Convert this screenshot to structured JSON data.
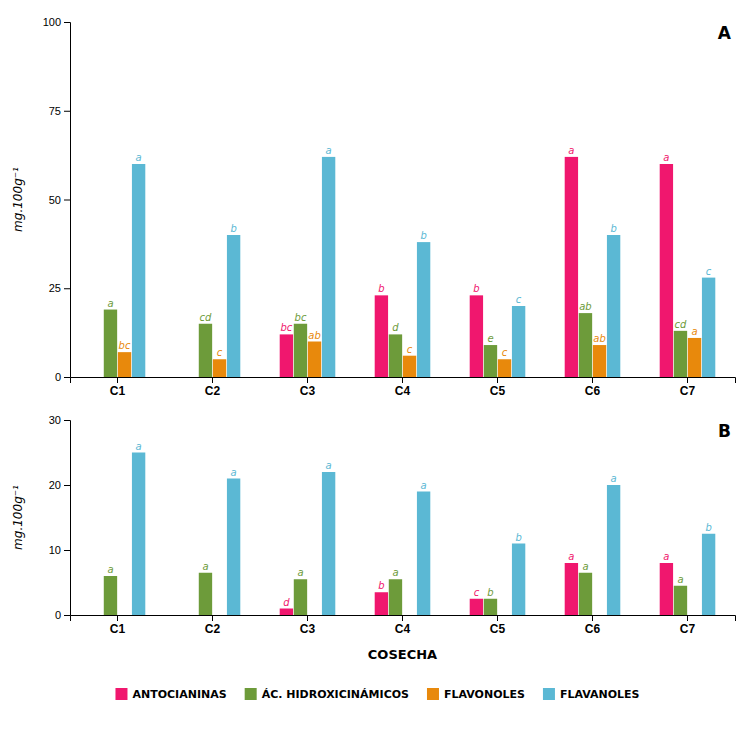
{
  "chart_data": [
    {
      "type": "bar",
      "title": "A",
      "categories": [
        "C1",
        "C2",
        "C3",
        "C4",
        "C5",
        "C6",
        "C7"
      ],
      "series": [
        {
          "name": "ANTOCIANINAS",
          "color": "#F0176E",
          "values": [
            0,
            0,
            12,
            23,
            23,
            62,
            60
          ],
          "annotations": [
            null,
            null,
            "bc",
            "b",
            "b",
            "a",
            "a"
          ]
        },
        {
          "name": "ÁC. HIDROXICINÁMICOS",
          "color": "#6d9b3a",
          "values": [
            19,
            15,
            15,
            12,
            9,
            18,
            13
          ],
          "annotations": [
            "a",
            "cd",
            "bc",
            "d",
            "e",
            "ab",
            "cd"
          ]
        },
        {
          "name": "FLAVONOLES",
          "color": "#E8890C",
          "values": [
            7,
            5,
            10,
            6,
            5,
            9,
            11
          ],
          "annotations": [
            "bc",
            "c",
            "ab",
            "c",
            "c",
            "ab",
            "a"
          ]
        },
        {
          "name": "FLAVANOLES",
          "color": "#5bb8d4",
          "values": [
            60,
            40,
            62,
            38,
            20,
            40,
            28
          ],
          "annotations": [
            "a",
            "b",
            "a",
            "b",
            "c",
            "b",
            "c"
          ]
        }
      ],
      "ylabel": "mg.100g⁻¹",
      "ylim": [
        0,
        100
      ],
      "yticks": [
        0,
        25,
        50,
        75,
        100
      ],
      "grid": false
    },
    {
      "type": "bar",
      "title": "B",
      "categories": [
        "C1",
        "C2",
        "C3",
        "C4",
        "C5",
        "C6",
        "C7"
      ],
      "series": [
        {
          "name": "ANTOCIANINAS",
          "color": "#F0176E",
          "values": [
            0,
            0,
            1,
            3.5,
            2.5,
            8,
            8
          ],
          "annotations": [
            null,
            null,
            "d",
            "b",
            "c",
            "a",
            "a"
          ]
        },
        {
          "name": "ÁC. HIDROXICINÁMICOS",
          "color": "#6d9b3a",
          "values": [
            6,
            6.5,
            5.5,
            5.5,
            2.5,
            6.5,
            4.5
          ],
          "annotations": [
            "a",
            "a",
            "a",
            "a",
            "b",
            "a",
            "a"
          ]
        },
        {
          "name": "FLAVONOLES",
          "color": "#E8890C",
          "values": [
            0,
            0,
            0,
            0,
            0,
            0,
            0
          ],
          "annotations": [
            null,
            null,
            null,
            null,
            null,
            null,
            null
          ]
        },
        {
          "name": "FLAVANOLES",
          "color": "#5bb8d4",
          "values": [
            25,
            21,
            22,
            19,
            11,
            20,
            12.5
          ],
          "annotations": [
            "a",
            "a",
            "a",
            "a",
            "b",
            "a",
            "b"
          ]
        }
      ],
      "xlabel": "COSECHA",
      "ylabel": "mg.100g⁻¹",
      "ylim": [
        0,
        30
      ],
      "yticks": [
        0,
        10,
        20,
        30
      ],
      "grid": false,
      "legend": "bottom"
    }
  ]
}
